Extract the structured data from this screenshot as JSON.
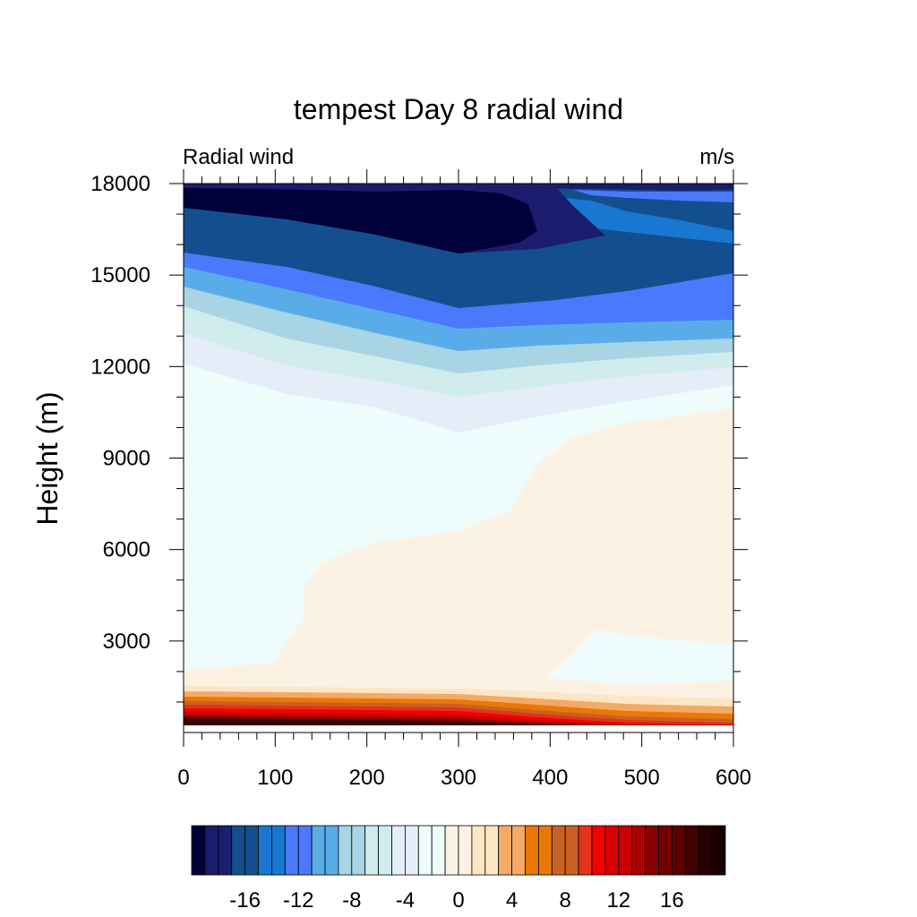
{
  "chart_data": {
    "type": "filled-contour",
    "title": "tempest Day 8 radial wind",
    "left_string": "Radial wind",
    "right_string": "m/s",
    "xlabel": "",
    "ylabel": "Height (m)",
    "xlim": [
      0,
      600
    ],
    "ylim": [
      0,
      18000
    ],
    "x_ticks": [
      0,
      100,
      200,
      300,
      400,
      500,
      600
    ],
    "x_tick_labels": [
      "0",
      "100",
      "200",
      "300",
      "400",
      "500",
      "600"
    ],
    "y_ticks": [
      3000,
      6000,
      9000,
      12000,
      15000,
      18000
    ],
    "y_tick_labels": [
      "3000",
      "6000",
      "9000",
      "12000",
      "15000",
      "18000"
    ],
    "colorbar": {
      "levels": [
        -19,
        -18,
        -17,
        -16,
        -15,
        -14,
        -13,
        -12,
        -11,
        -10,
        -9,
        -8,
        -7,
        -6,
        -5,
        -4,
        -3,
        -2,
        -1,
        0,
        1,
        2,
        3,
        4,
        5,
        6,
        7,
        8,
        9,
        10,
        11,
        12,
        13,
        14,
        15,
        16,
        17,
        18,
        19
      ],
      "tick_values": [
        -16,
        -12,
        -8,
        -4,
        0,
        4,
        8,
        12,
        16
      ],
      "tick_labels": [
        "-16",
        "-12",
        "-8",
        "-4",
        "0",
        "4",
        "8",
        "12",
        "16"
      ],
      "colors": [
        "#00003a",
        "#1c1c6e",
        "#191f6e",
        "#134f8f",
        "#134f8f",
        "#1877d0",
        "#1877d0",
        "#4b79fb",
        "#4b79fb",
        "#5aace8",
        "#5aace8",
        "#a8d4e4",
        "#a8d4e4",
        "#d0ecec",
        "#d0ecec",
        "#e4edf8",
        "#e4edf8",
        "#eefcfc",
        "#eefcfc",
        "#fcf2e4",
        "#fcf2e4",
        "#fde6c4",
        "#fde6c4",
        "#f4aa66",
        "#f4aa66",
        "#eb7706",
        "#eb7706",
        "#c96122",
        "#c96122",
        "#e3331a",
        "#f40000",
        "#d80000",
        "#c80000",
        "#ac0000",
        "#880000",
        "#720000",
        "#5c0000",
        "#420000",
        "#280000",
        "#1a0000"
      ]
    },
    "description_regions": [
      {
        "band": "-19 and below",
        "color": "#00003a",
        "location": "top, x 0-390, z 15700-18000"
      },
      {
        "band": "-18 to -16",
        "color": "#1c1c6e",
        "location": "top rim, x 0-460"
      },
      {
        "band": "-14",
        "color": "#134f8f",
        "location": "z 14500-17300"
      },
      {
        "band": "-12",
        "color": "#1877d0",
        "location": "z 13500-17000"
      },
      {
        "band": "-10",
        "color": "#4b79fb",
        "location": "z 12700-15500"
      },
      {
        "band": "-8",
        "color": "#5aace8",
        "location": "z 12000-14500"
      },
      {
        "band": "-6",
        "color": "#a8d4e4",
        "location": "z 11000-14000"
      },
      {
        "band": "-4",
        "color": "#d0ecec",
        "location": "z 10000-13000"
      },
      {
        "band": "-2",
        "color": "#e4edf8",
        "location": "z 9800-12100"
      },
      {
        "band": "0 to -1",
        "color": "#eefcfc",
        "location": "mid/upper-left"
      },
      {
        "band": "0 to 1",
        "color": "#fcf2e4",
        "location": "lower/right body"
      },
      {
        "band": "2 to 19",
        "color": "#f4aa66 to #1a0000",
        "location": "boundary layer, z 300-1500"
      }
    ]
  }
}
